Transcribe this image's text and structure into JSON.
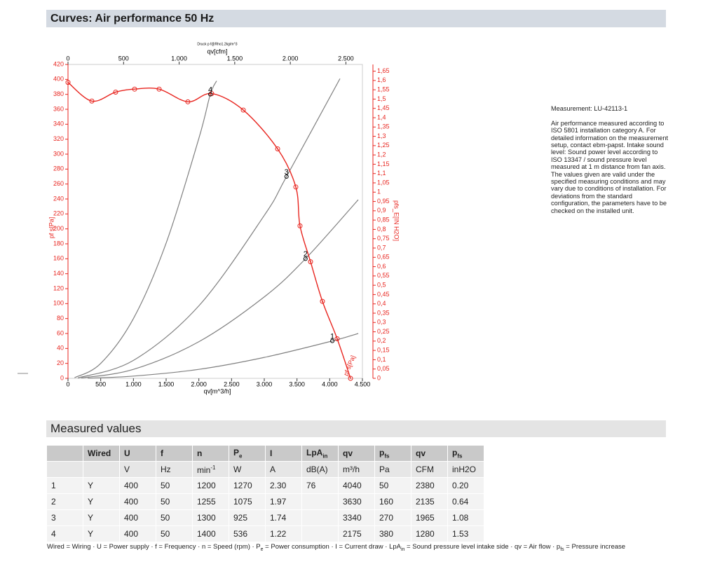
{
  "header": {
    "title": "Curves: Air performance 50 Hz"
  },
  "chart_data": {
    "type": "line",
    "subtitle": "Druck p f@Rho1.2kg/m^3",
    "xlabel": "qv[m^3/h]",
    "x2label": "qv[cfm]",
    "ylabel": "pf s[Pa]",
    "y2label": "pfs_E[IN H2O]",
    "curve_label": "pf s[Pa]",
    "xlim": [
      0,
      4500
    ],
    "xticks": [
      0,
      500,
      {
        "value": 1000,
        "label": "1.000"
      },
      {
        "value": 1500,
        "label": "1.500"
      },
      {
        "value": 2000,
        "label": "2.000"
      },
      {
        "value": 2500,
        "label": "2.500"
      },
      {
        "value": 3000,
        "label": "3.000"
      },
      {
        "value": 3500,
        "label": "3.500"
      },
      {
        "value": 4000,
        "label": "4.000"
      },
      {
        "value": 4500,
        "label": "4.500"
      }
    ],
    "x2lim": [
      0,
      2648.6
    ],
    "x2ticks": [
      0,
      500,
      {
        "value": 1000,
        "label": "1.000"
      },
      {
        "value": 1500,
        "label": "1.500"
      },
      {
        "value": 2000,
        "label": "2.000"
      },
      {
        "value": 2500,
        "label": "2.500"
      }
    ],
    "ylim": [
      0,
      420
    ],
    "yticks": [
      0,
      20,
      40,
      60,
      80,
      100,
      120,
      140,
      160,
      180,
      200,
      220,
      240,
      260,
      280,
      300,
      320,
      340,
      360,
      380,
      400,
      420
    ],
    "y2lim": [
      0,
      1.686
    ],
    "y2ticks": [
      0,
      {
        "value": 0.05,
        "label": "0,05"
      },
      {
        "value": 0.1,
        "label": "0,1"
      },
      {
        "value": 0.15,
        "label": "0,15"
      },
      {
        "value": 0.2,
        "label": "0,2"
      },
      {
        "value": 0.25,
        "label": "0,25"
      },
      {
        "value": 0.3,
        "label": "0,3"
      },
      {
        "value": 0.35,
        "label": "0,35"
      },
      {
        "value": 0.4,
        "label": "0,4"
      },
      {
        "value": 0.45,
        "label": "0,45"
      },
      {
        "value": 0.5,
        "label": "0,5"
      },
      {
        "value": 0.55,
        "label": "0,55"
      },
      {
        "value": 0.6,
        "label": "0,6"
      },
      {
        "value": 0.65,
        "label": "0,65"
      },
      {
        "value": 0.7,
        "label": "0,7"
      },
      {
        "value": 0.75,
        "label": "0,75"
      },
      {
        "value": 0.8,
        "label": "0,8"
      },
      {
        "value": 0.85,
        "label": "0,85"
      },
      {
        "value": 0.9,
        "label": "0,9"
      },
      {
        "value": 0.95,
        "label": "0,95"
      },
      1,
      {
        "value": 1.05,
        "label": "1,05"
      },
      {
        "value": 1.1,
        "label": "1,1"
      },
      {
        "value": 1.15,
        "label": "1,15"
      },
      {
        "value": 1.2,
        "label": "1,2"
      },
      {
        "value": 1.25,
        "label": "1,25"
      },
      {
        "value": 1.3,
        "label": "1,3"
      },
      {
        "value": 1.35,
        "label": "1,35"
      },
      {
        "value": 1.4,
        "label": "1,4"
      },
      {
        "value": 1.45,
        "label": "1,45"
      },
      {
        "value": 1.5,
        "label": "1,5"
      },
      {
        "value": 1.55,
        "label": "1,55"
      },
      {
        "value": 1.6,
        "label": "1,6"
      },
      {
        "value": 1.65,
        "label": "1,65"
      }
    ],
    "grid": false,
    "series": [
      {
        "color": "#e8251f",
        "markers": true,
        "x": [
          0,
          364,
          728,
          1018,
          1393,
          1832,
          2196,
          2679,
          3204,
          3482,
          3546,
          3707,
          3889,
          4114,
          4318
        ],
        "values": [
          396,
          371,
          383,
          387,
          387,
          370,
          381,
          359,
          307,
          256,
          204,
          156,
          103,
          53,
          0
        ]
      },
      {
        "color": "#808080",
        "markers": false,
        "x": [
          300,
          1000,
          2000,
          3000,
          4040,
          4436
        ],
        "values": [
          0.3,
          3,
          12,
          28,
          50,
          60
        ]
      },
      {
        "color": "#808080",
        "markers": false,
        "x": [
          200,
          1000,
          2000,
          3000,
          3630,
          4436
        ],
        "values": [
          0.5,
          12,
          49,
          109,
          160,
          239
        ]
      },
      {
        "color": "#808080",
        "markers": false,
        "x": [
          150,
          1000,
          2000,
          3000,
          3340,
          4157
        ],
        "values": [
          0.5,
          24,
          97,
          218,
          270,
          401
        ]
      },
      {
        "color": "#808080",
        "markers": false,
        "x": [
          100,
          500,
          1000,
          1500,
          2000,
          2175,
          2271
        ],
        "values": [
          0.8,
          20,
          80,
          181,
          321,
          380,
          398
        ]
      }
    ],
    "operating_points": {
      "labels": [
        "1",
        "2",
        "3",
        "4"
      ],
      "x": [
        4040,
        3630,
        3340,
        2175
      ],
      "values": [
        50,
        160,
        270,
        380
      ]
    }
  },
  "notes": {
    "measurement": "Measurement: LU-42113-1",
    "text": "Air performance measured according to ISO 5801 installation category A. For detailed information on the measurement setup, contact ebm-papst. Intake sound level: Sound power level according to ISO 13347 / sound pressure level measured at 1 m distance from fan axis. The values given are valid under the specified measuring conditions and may vary due to conditions of installation. For deviations from the standard configuration, the parameters have to be checked on the installed unit."
  },
  "table": {
    "title": "Measured values",
    "header": [
      null,
      "Wired",
      "U",
      "f",
      "n",
      {
        "text": "P",
        "sub": "e"
      },
      "I",
      {
        "text": "LpA",
        "sub": "in"
      },
      "qv",
      {
        "text": "p",
        "sub": "fs"
      },
      "qv",
      {
        "text": "p",
        "sub": "fs"
      }
    ],
    "units": [
      null,
      null,
      "V",
      "Hz",
      {
        "text": "min",
        "sup": "-1"
      },
      "W",
      "A",
      "dB(A)",
      "m³/h",
      "Pa",
      "CFM",
      "inH2O"
    ],
    "rows": [
      [
        "1",
        "Y",
        "400",
        "50",
        "1200",
        "1270",
        "2.30",
        "76",
        "4040",
        "50",
        "2380",
        "0.20"
      ],
      [
        "2",
        "Y",
        "400",
        "50",
        "1255",
        "1075",
        "1.97",
        null,
        "3630",
        "160",
        "2135",
        "0.64"
      ],
      [
        "3",
        "Y",
        "400",
        "50",
        "1300",
        "925",
        "1.74",
        null,
        "3340",
        "270",
        "1965",
        "1.08"
      ],
      [
        "4",
        "Y",
        "400",
        "50",
        "1400",
        "536",
        "1.22",
        null,
        "2175",
        "380",
        "1280",
        "1.53"
      ]
    ]
  },
  "footnote": [
    {
      "text": "Wired = Wiring · U = Power supply · f = Frequency · n = Speed (rpm) · P",
      "sub": "e"
    },
    {
      "text": " = Power consumption · I = Current draw · LpA",
      "sub": "in"
    },
    {
      "text": " = Sound pressure level intake side · qv = Air flow · p",
      "sub": "fs"
    },
    {
      "text": " = Pressure increase"
    }
  ]
}
